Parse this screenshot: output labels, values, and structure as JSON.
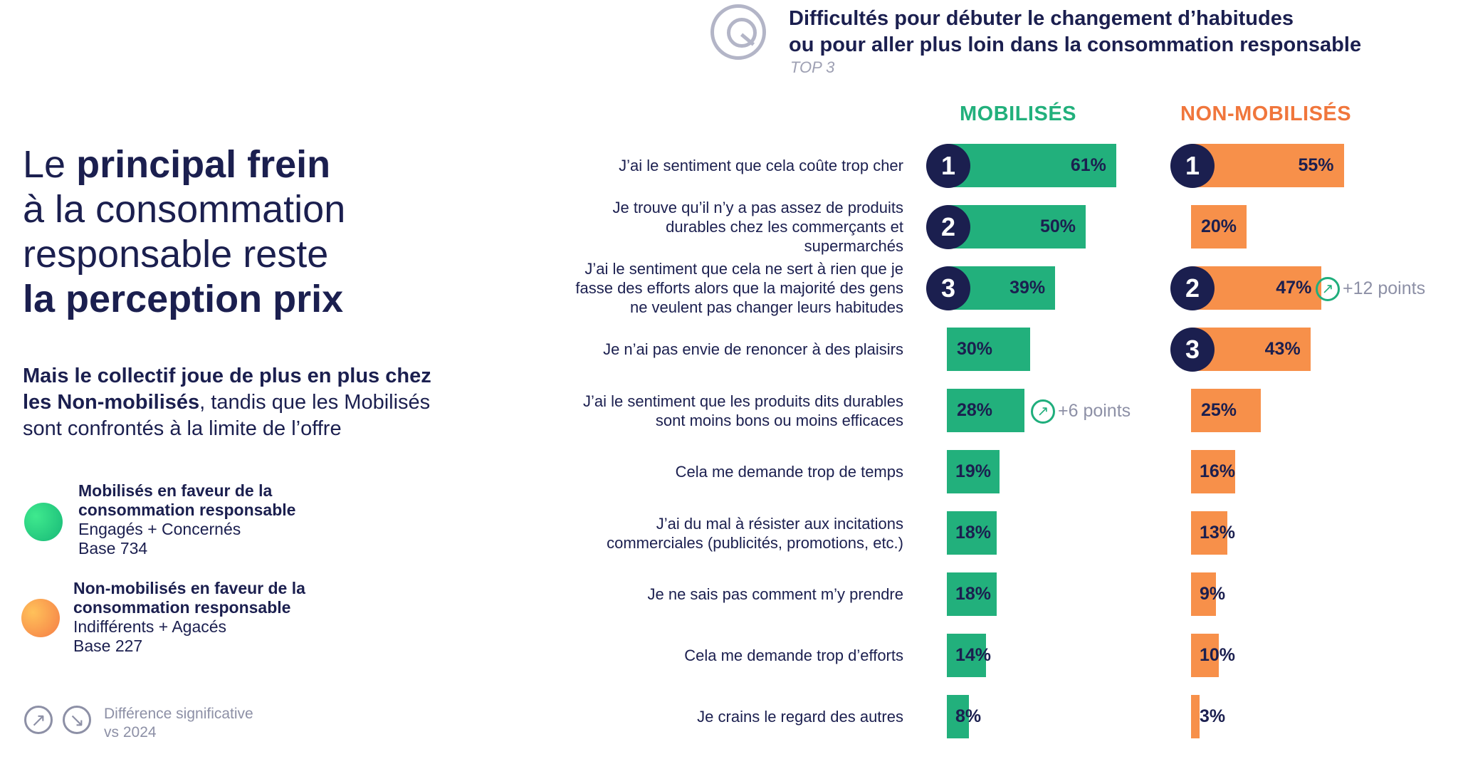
{
  "headline": {
    "line1_a": "Le ",
    "line1_b": "principal frein",
    "line2": "à la consommation",
    "line3": "responsable reste",
    "line4": "la perception prix"
  },
  "subtext": {
    "bold": "Mais le collectif joue de plus en plus chez les Non-mobilisés",
    "rest": ", tandis que les Mobilisés sont confrontés à la limite de l’offre"
  },
  "legend": [
    {
      "title_line1": "Mobilisés en faveur de la",
      "title_line2": "consommation responsable",
      "detail": "Engagés + Concernés",
      "base": "Base 734",
      "color": "#22c47e"
    },
    {
      "title_line1": "Non-mobilisés en faveur de la",
      "title_line2": "consommation responsable",
      "detail": "Indifférents + Agacés",
      "base": "Base 227",
      "color": "#f7904a"
    }
  ],
  "significance": {
    "line1": "Différence significative",
    "line2": "vs 2024",
    "up_icon": "arrow-up-right-icon",
    "down_icon": "arrow-down-right-icon"
  },
  "question": {
    "icon": "q-icon",
    "title_line1": "Difficultés pour débuter le changement d’habitudes",
    "title_line2": "ou pour aller plus loin dans la consommation responsable",
    "sub": "TOP 3"
  },
  "colors": {
    "mobilises": "#22b07c",
    "non_mobilises": "#f7904a",
    "rank": "#1b1f4f",
    "text": "#1b1f4f"
  },
  "chart_data": {
    "type": "bar",
    "orientation": "horizontal",
    "categories": [
      [
        "J’ai le sentiment que cela coûte trop cher"
      ],
      [
        "Je trouve qu’il n’y a pas assez de produits",
        "durables chez les commerçants et",
        "supermarchés"
      ],
      [
        "J’ai le sentiment que cela ne sert à rien que je",
        "fasse des efforts alors que la majorité des gens",
        "ne veulent pas changer leurs habitudes"
      ],
      [
        "Je n’ai pas envie de renoncer à des plaisirs"
      ],
      [
        "J’ai le sentiment que les produits dits durables",
        "sont moins bons ou moins efficaces"
      ],
      [
        "Cela me demande trop de temps"
      ],
      [
        "J’ai du mal à résister aux incitations",
        "commerciales (publicités, promotions, etc.)"
      ],
      [
        "Je ne sais pas comment m’y prendre"
      ],
      [
        "Cela me demande trop d’efforts"
      ],
      [
        "Je crains le regard des autres"
      ]
    ],
    "series": [
      {
        "name": "MOBILISÉS",
        "values": [
          61,
          50,
          39,
          30,
          28,
          19,
          18,
          18,
          14,
          8
        ],
        "labels": [
          "61%",
          "50%",
          "39%",
          "30%",
          "28%",
          "19%",
          "18%",
          "18%",
          "14%",
          "8%"
        ],
        "ranks": [
          "1",
          "2",
          "3",
          null,
          null,
          null,
          null,
          null,
          null,
          null
        ],
        "significance": [
          null,
          null,
          null,
          null,
          "+6 points",
          null,
          null,
          null,
          null,
          null
        ]
      },
      {
        "name": "NON-MOBILISÉS",
        "values": [
          55,
          20,
          47,
          43,
          25,
          16,
          13,
          9,
          10,
          3
        ],
        "labels": [
          "55%",
          "20%",
          "47%",
          "43%",
          "25%",
          "16%",
          "13%",
          "9%",
          "10%",
          "3%"
        ],
        "ranks": [
          "1",
          null,
          "2",
          "3",
          null,
          null,
          null,
          null,
          null,
          null
        ],
        "significance": [
          null,
          null,
          "+12 points",
          null,
          null,
          null,
          null,
          null,
          null,
          null
        ]
      }
    ],
    "unit": "%",
    "xlim": [
      0,
      100
    ]
  }
}
